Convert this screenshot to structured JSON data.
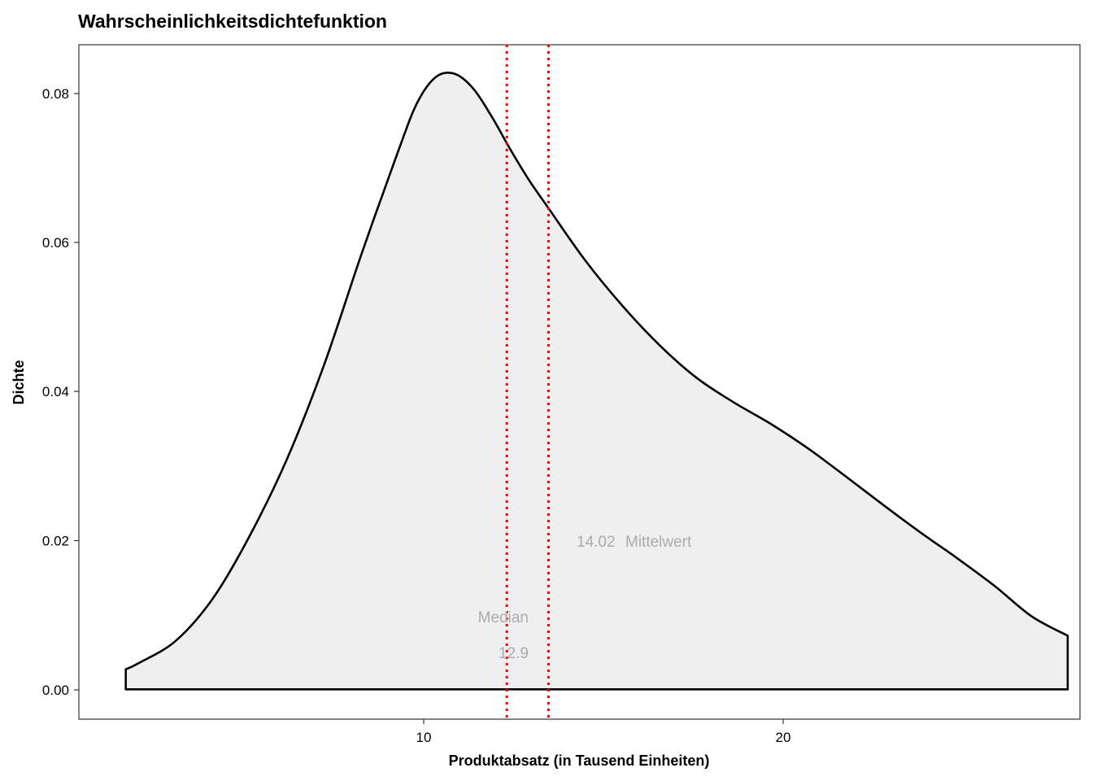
{
  "chart_data": {
    "type": "area",
    "title": "Wahrscheinlichkeitsdichtefunktion",
    "xlabel": "Produktabsatz (in Tausend Einheiten)",
    "ylabel": "Dichte",
    "xlim": [
      1.4,
      28.3
    ],
    "ylim": [
      -0.004,
      0.0865
    ],
    "x_ticks": [
      10,
      20
    ],
    "y_ticks": [
      0.0,
      0.02,
      0.04,
      0.06,
      0.08
    ],
    "x_tick_labels": [
      "10",
      "20"
    ],
    "y_tick_labels": [
      "0.00",
      "0.02",
      "0.04",
      "0.06",
      "0.08"
    ],
    "grid": false,
    "fill_color": "#efefef",
    "line_color": "#000000",
    "density": {
      "x": [
        2.66,
        3,
        4,
        5,
        6,
        7,
        8,
        9,
        10,
        10.5,
        11,
        11.5,
        12,
        12.5,
        13,
        13.5,
        14,
        15,
        16,
        17,
        18,
        19,
        20,
        21,
        22,
        23,
        24,
        25,
        26,
        27,
        27.97
      ],
      "y": [
        0.0027,
        0.0035,
        0.0065,
        0.0122,
        0.0207,
        0.031,
        0.0437,
        0.0585,
        0.0725,
        0.0788,
        0.0822,
        0.0826,
        0.0806,
        0.0768,
        0.0724,
        0.0683,
        0.0647,
        0.0576,
        0.0515,
        0.0462,
        0.0418,
        0.0385,
        0.0356,
        0.0323,
        0.0286,
        0.0248,
        0.0211,
        0.0176,
        0.0139,
        0.0098,
        0.0072
      ]
    },
    "reference_lines": [
      {
        "name": "Median",
        "value": 12.9,
        "value_label": "12.9",
        "color": "#ff0000"
      },
      {
        "name": "Mittelwert",
        "value": 14.02,
        "value_label": "14.02",
        "color": "#ff0000"
      }
    ],
    "annotations": {
      "median_name": "Median",
      "median_value": "12.9",
      "mean_value": "14.02",
      "mean_name": "Mittelwert",
      "color": "#ababab"
    }
  }
}
